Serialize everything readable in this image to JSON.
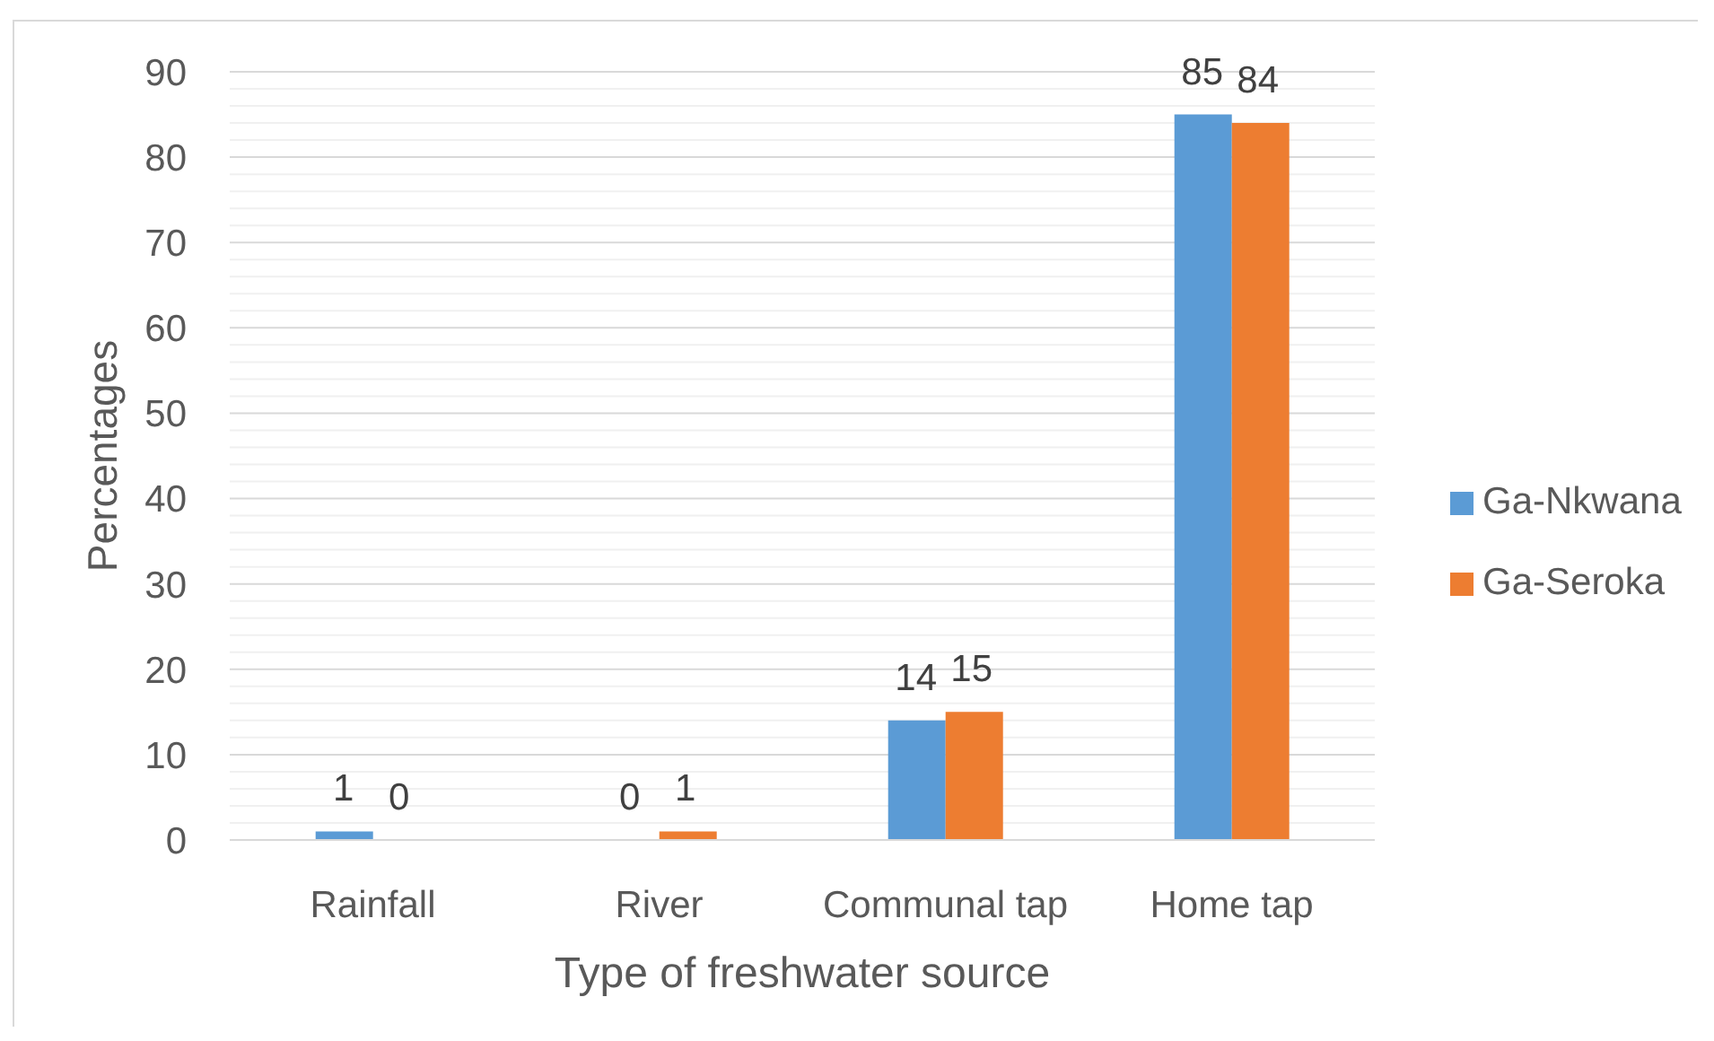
{
  "chart_data": {
    "type": "bar",
    "xlabel": "Type of freshwater source",
    "ylabel": "Percentages",
    "categories": [
      "Rainfall",
      "River",
      "Communal tap",
      "Home tap"
    ],
    "series": [
      {
        "name": "Ga-Nkwana",
        "color": "#5b9bd5",
        "values": [
          1,
          0,
          14,
          85
        ]
      },
      {
        "name": "Ga-Seroka",
        "color": "#ed7d31",
        "values": [
          0,
          1,
          15,
          84
        ]
      }
    ],
    "ylim": [
      0,
      90
    ],
    "yticks": [
      0,
      {
        "value": 2,
        "label": null
      },
      {
        "value": 4,
        "label": null
      },
      {
        "value": 6,
        "label": null
      },
      {
        "value": 8,
        "label": null
      },
      10,
      {
        "value": 12,
        "label": null
      },
      {
        "value": 14,
        "label": null
      },
      {
        "value": 16,
        "label": null
      },
      {
        "value": 18,
        "label": null
      },
      20,
      {
        "value": 22,
        "label": null
      },
      {
        "value": 24,
        "label": null
      },
      {
        "value": 26,
        "label": null
      },
      {
        "value": 28,
        "label": null
      },
      30,
      {
        "value": 32,
        "label": null
      },
      {
        "value": 34,
        "label": null
      },
      {
        "value": 36,
        "label": null
      },
      {
        "value": 38,
        "label": null
      },
      40,
      {
        "value": 42,
        "label": null
      },
      {
        "value": 44,
        "label": null
      },
      {
        "value": 46,
        "label": null
      },
      {
        "value": 48,
        "label": null
      },
      50,
      {
        "value": 52,
        "label": null
      },
      {
        "value": 54,
        "label": null
      },
      {
        "value": 56,
        "label": null
      },
      {
        "value": 58,
        "label": null
      },
      60,
      {
        "value": 62,
        "label": null
      },
      {
        "value": 64,
        "label": null
      },
      {
        "value": 66,
        "label": null
      },
      {
        "value": 68,
        "label": null
      },
      70,
      {
        "value": 72,
        "label": null
      },
      {
        "value": 74,
        "label": null
      },
      {
        "value": 76,
        "label": null
      },
      {
        "value": 78,
        "label": null
      },
      80,
      {
        "value": 82,
        "label": null
      },
      {
        "value": 84,
        "label": null
      },
      {
        "value": 86,
        "label": null
      },
      {
        "value": 88,
        "label": null
      },
      90
    ],
    "grid": "y",
    "legend": "right",
    "data_labels": true
  }
}
